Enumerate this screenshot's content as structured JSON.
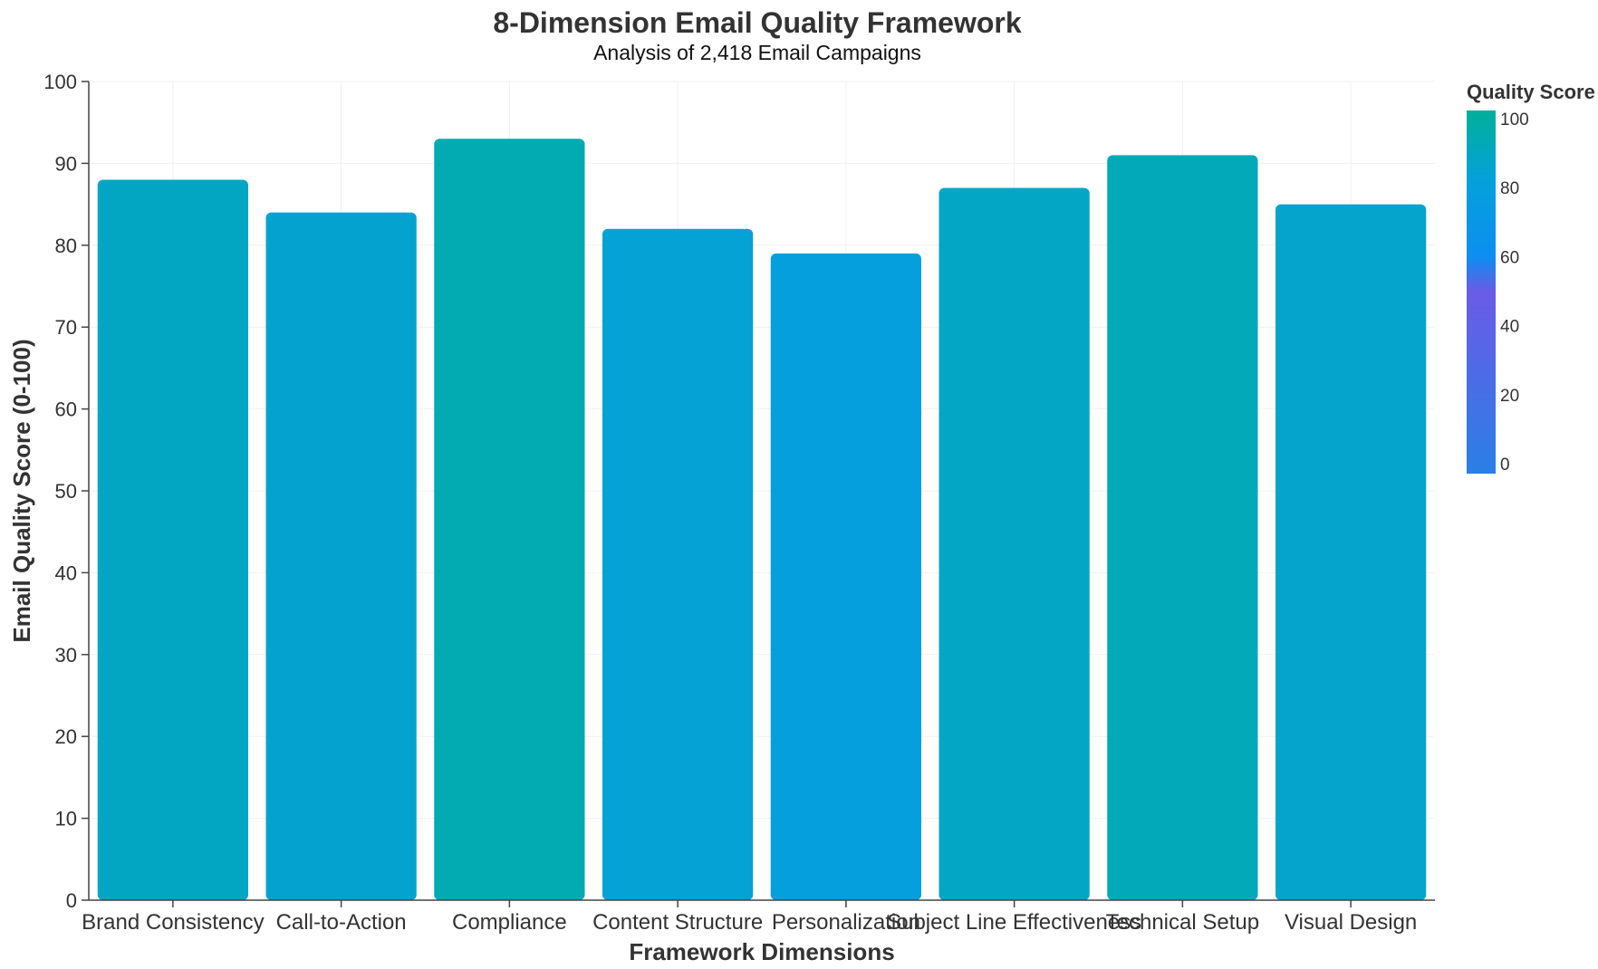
{
  "chart_data": {
    "type": "bar",
    "title": "8-Dimension Email Quality Framework",
    "subtitle": "Analysis of 2,418 Email Campaigns",
    "xlabel": "Framework Dimensions",
    "ylabel": "Email Quality Score (0-100)",
    "categories": [
      "Brand Consistency",
      "Call-to-Action",
      "Compliance",
      "Content Structure",
      "Personalization",
      "Subject Line Effectiveness",
      "Technical Setup",
      "Visual Design"
    ],
    "values": [
      88,
      84,
      93,
      82,
      79,
      87,
      91,
      85
    ],
    "ylim": [
      0,
      100
    ],
    "yticks": [
      0,
      10,
      20,
      30,
      40,
      50,
      60,
      70,
      80,
      90,
      100
    ],
    "grid": true,
    "legend": {
      "title": "Quality Score",
      "placement": "right",
      "ticks": [
        0,
        20,
        40,
        60,
        80,
        100
      ],
      "range": [
        0,
        100
      ]
    },
    "colorscale": [
      [
        0,
        "#2a7fe6"
      ],
      [
        0.5,
        "#6a5be6"
      ],
      [
        0.6,
        "#0b8ff0"
      ],
      [
        0.8,
        "#05a0dc"
      ],
      [
        1,
        "#00b09a"
      ]
    ]
  }
}
